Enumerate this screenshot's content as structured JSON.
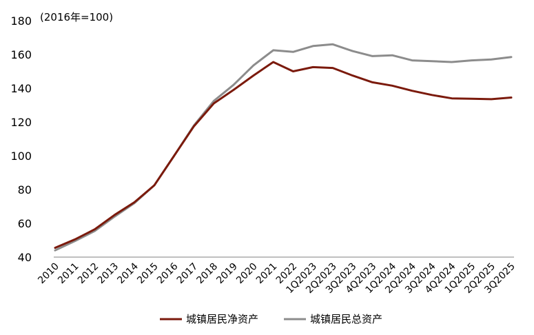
{
  "chart_data": {
    "type": "line",
    "unit_label": "(2016年=100)",
    "ylim": [
      40,
      180
    ],
    "yticks": [
      40,
      60,
      80,
      100,
      120,
      140,
      160,
      180
    ],
    "grid": false,
    "legend_position": "bottom",
    "categories": [
      "2010",
      "2011",
      "2012",
      "2013",
      "2014",
      "2015",
      "2016",
      "2017",
      "2018",
      "2019",
      "2020",
      "2021",
      "2022",
      "1Q2023",
      "2Q2023",
      "3Q2023",
      "4Q2023",
      "1Q2024",
      "2Q2024",
      "3Q2024",
      "4Q2024",
      "1Q2025",
      "2Q2025",
      "3Q2025"
    ],
    "series": [
      {
        "name": "城镇居民净资产",
        "color": "#7b1a0c",
        "values": [
          45.5,
          50.5,
          56.5,
          65,
          72.5,
          82.5,
          100,
          117.5,
          131,
          139,
          147.5,
          155.5,
          150,
          152.5,
          152,
          147.5,
          143.5,
          141.5,
          138.5,
          136,
          134,
          133.8,
          133.5,
          134.5
        ]
      },
      {
        "name": "城镇居民总资产",
        "color": "#8c8c8c",
        "values": [
          44,
          49.5,
          55.5,
          64,
          72,
          82.5,
          100,
          118,
          132.5,
          142,
          153.5,
          162.5,
          161.5,
          165,
          166,
          162,
          159,
          159.5,
          156.5,
          156,
          155.5,
          156.5,
          157,
          158.5
        ]
      }
    ]
  }
}
